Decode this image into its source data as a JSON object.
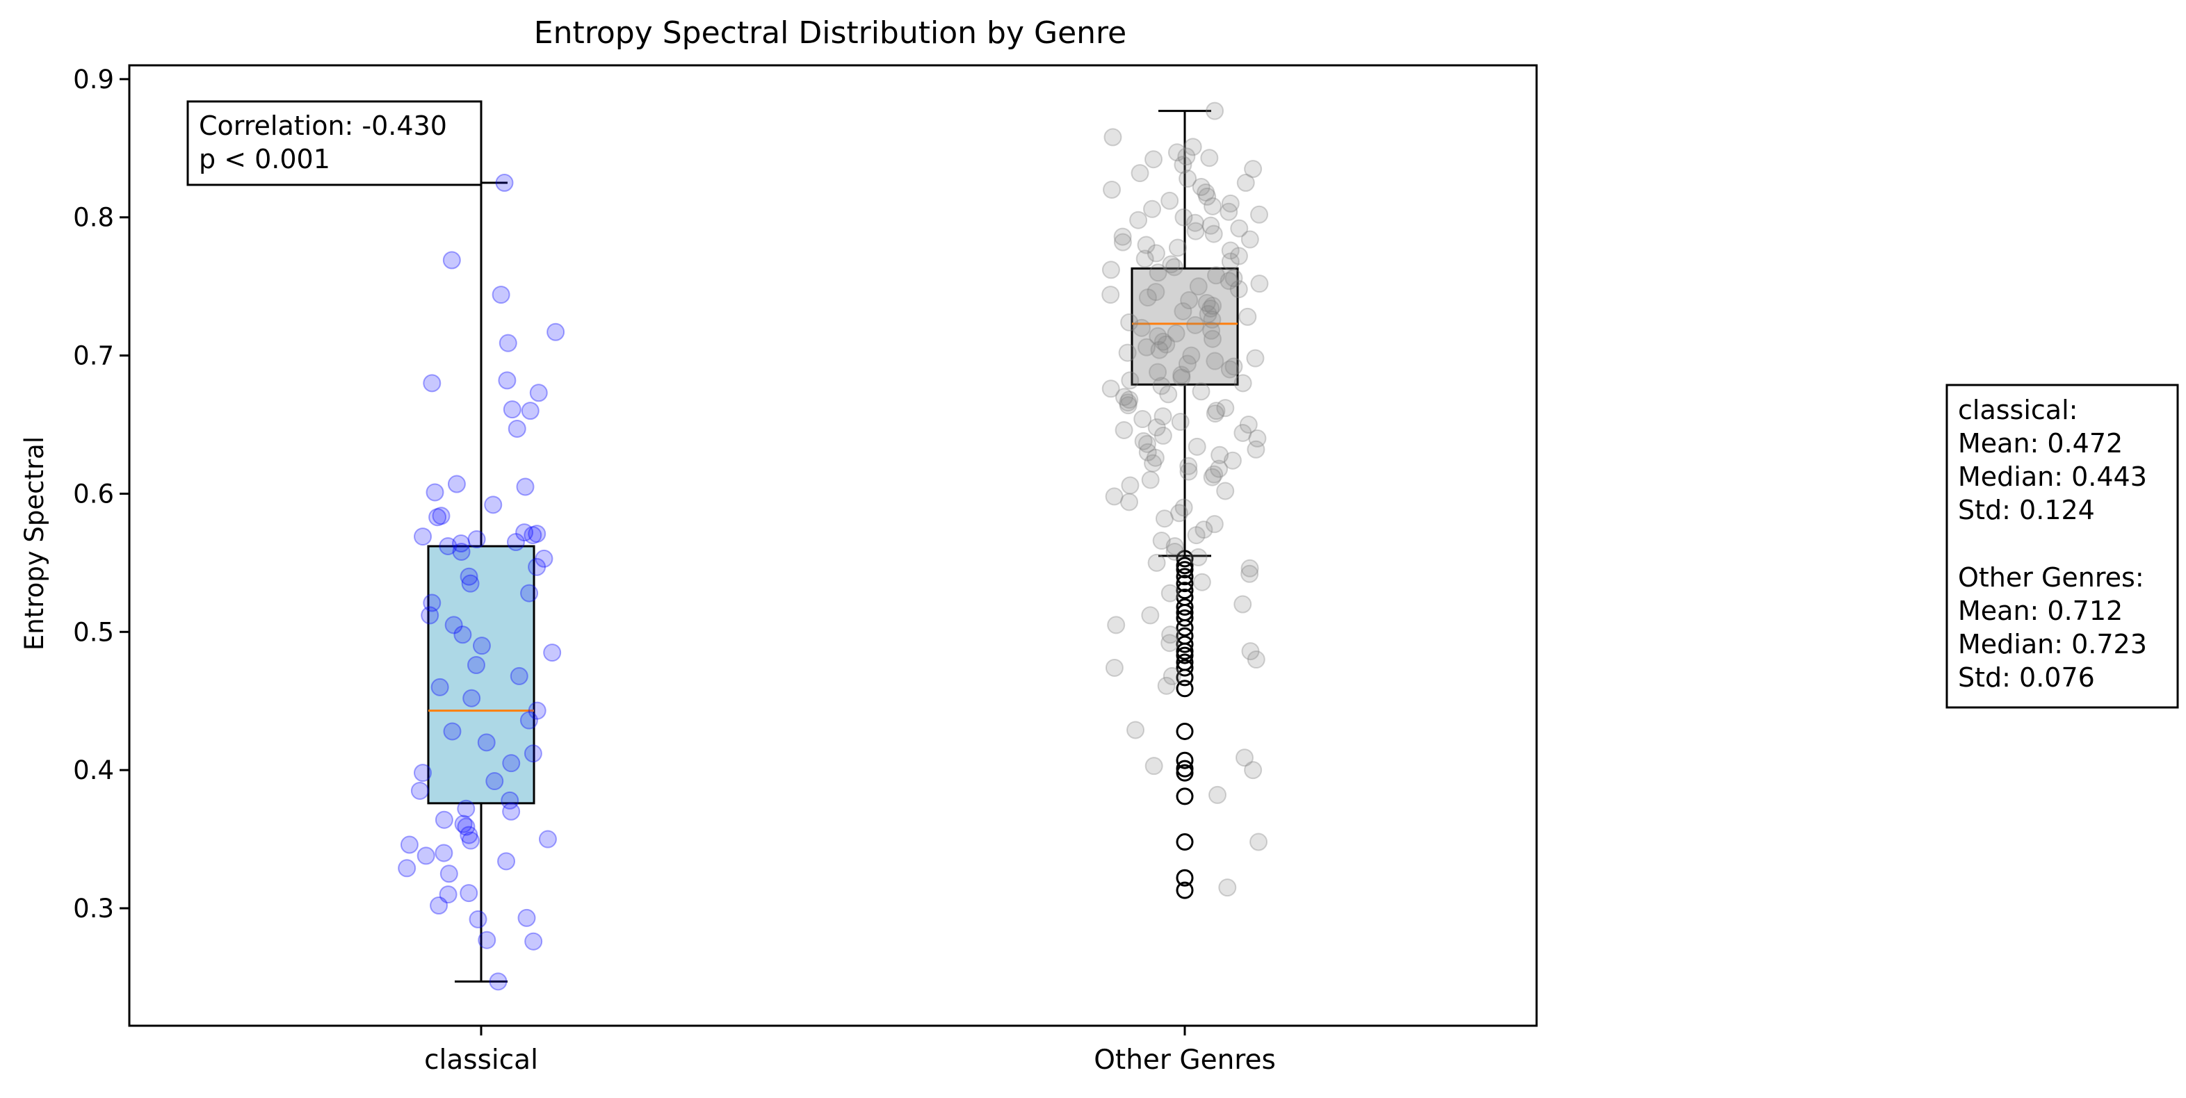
{
  "chart_data": {
    "type": "box",
    "title": "Entropy Spectral Distribution by Genre",
    "xlabel": "",
    "ylabel": "Entropy Spectral",
    "ylim": [
      0.215,
      0.91
    ],
    "yticks": [
      0.3,
      0.4,
      0.5,
      0.6,
      0.7,
      0.8,
      0.9
    ],
    "grid": false,
    "categories": [
      "classical",
      "Other Genres"
    ],
    "series": [
      {
        "name": "classical",
        "box_color": "#add8e6",
        "point_color": "#0000ff",
        "whisker_low": 0.247,
        "q1": 0.376,
        "median": 0.443,
        "q3": 0.562,
        "whisker_high": 0.825,
        "outliers": [],
        "points": [
          0.825,
          0.769,
          0.744,
          0.717,
          0.709,
          0.682,
          0.68,
          0.673,
          0.661,
          0.66,
          0.647,
          0.607,
          0.605,
          0.601,
          0.592,
          0.584,
          0.583,
          0.572,
          0.571,
          0.57,
          0.569,
          0.567,
          0.565,
          0.564,
          0.562,
          0.558,
          0.553,
          0.547,
          0.54,
          0.535,
          0.528,
          0.521,
          0.512,
          0.505,
          0.498,
          0.49,
          0.485,
          0.476,
          0.468,
          0.46,
          0.452,
          0.443,
          0.436,
          0.428,
          0.42,
          0.412,
          0.405,
          0.398,
          0.392,
          0.385,
          0.378,
          0.372,
          0.37,
          0.364,
          0.361,
          0.359,
          0.353,
          0.35,
          0.349,
          0.346,
          0.34,
          0.338,
          0.334,
          0.329,
          0.325,
          0.31,
          0.311,
          0.302,
          0.293,
          0.292,
          0.277,
          0.276,
          0.247
        ]
      },
      {
        "name": "Other Genres",
        "box_color": "#d3d3d3",
        "point_color": "#808080",
        "whisker_low": 0.555,
        "q1": 0.679,
        "median": 0.723,
        "q3": 0.763,
        "whisker_high": 0.877,
        "outliers": [
          0.553,
          0.548,
          0.545,
          0.54,
          0.535,
          0.53,
          0.525,
          0.518,
          0.514,
          0.51,
          0.503,
          0.497,
          0.491,
          0.486,
          0.483,
          0.478,
          0.474,
          0.467,
          0.459,
          0.428,
          0.407,
          0.401,
          0.398,
          0.381,
          0.348,
          0.322,
          0.313
        ],
        "points": [
          0.877,
          0.858,
          0.851,
          0.847,
          0.844,
          0.843,
          0.842,
          0.838,
          0.835,
          0.832,
          0.828,
          0.825,
          0.822,
          0.82,
          0.818,
          0.815,
          0.812,
          0.81,
          0.808,
          0.806,
          0.804,
          0.802,
          0.8,
          0.798,
          0.796,
          0.794,
          0.792,
          0.79,
          0.788,
          0.786,
          0.784,
          0.782,
          0.78,
          0.778,
          0.776,
          0.774,
          0.772,
          0.77,
          0.768,
          0.766,
          0.764,
          0.762,
          0.76,
          0.758,
          0.756,
          0.754,
          0.752,
          0.75,
          0.748,
          0.746,
          0.744,
          0.742,
          0.74,
          0.738,
          0.736,
          0.734,
          0.732,
          0.73,
          0.728,
          0.726,
          0.724,
          0.722,
          0.72,
          0.718,
          0.716,
          0.714,
          0.712,
          0.71,
          0.708,
          0.706,
          0.704,
          0.702,
          0.7,
          0.698,
          0.696,
          0.694,
          0.692,
          0.69,
          0.688,
          0.686,
          0.684,
          0.682,
          0.68,
          0.678,
          0.676,
          0.674,
          0.672,
          0.67,
          0.668,
          0.666,
          0.664,
          0.662,
          0.66,
          0.658,
          0.656,
          0.654,
          0.652,
          0.65,
          0.648,
          0.646,
          0.644,
          0.642,
          0.64,
          0.638,
          0.636,
          0.634,
          0.632,
          0.63,
          0.628,
          0.626,
          0.624,
          0.622,
          0.62,
          0.618,
          0.616,
          0.614,
          0.612,
          0.61,
          0.606,
          0.602,
          0.598,
          0.594,
          0.59,
          0.586,
          0.582,
          0.578,
          0.574,
          0.57,
          0.566,
          0.562,
          0.558,
          0.554,
          0.55,
          0.546,
          0.542,
          0.536,
          0.528,
          0.52,
          0.512,
          0.505,
          0.498,
          0.492,
          0.486,
          0.48,
          0.474,
          0.468,
          0.461,
          0.429,
          0.409,
          0.403,
          0.4,
          0.382,
          0.348,
          0.315
        ]
      }
    ],
    "annotations": {
      "correlation_lines": [
        "Correlation: -0.430",
        "p < 0.001"
      ],
      "stats_lines": [
        "classical:",
        "Mean: 0.472",
        "Median: 0.443",
        "Std: 0.124",
        "",
        "Other Genres:",
        "Mean: 0.712",
        "Median: 0.723",
        "Std: 0.076"
      ]
    }
  }
}
